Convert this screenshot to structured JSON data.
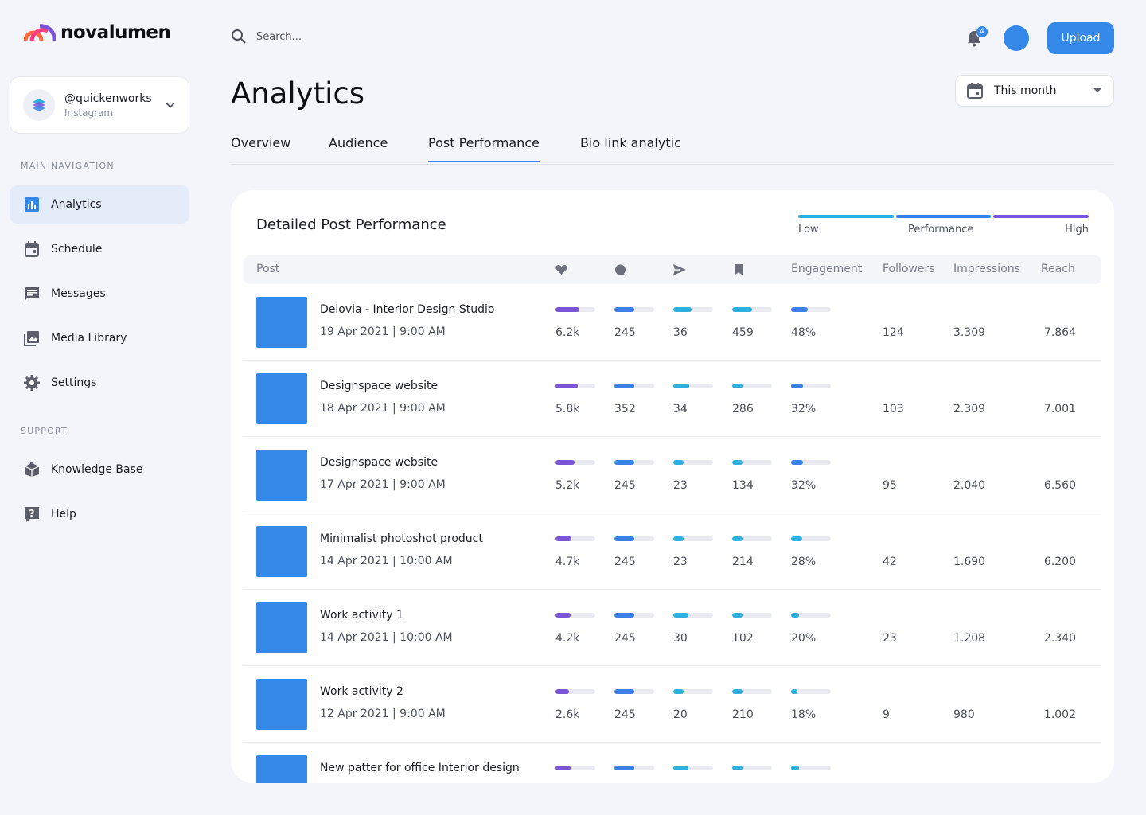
{
  "brand": {
    "name": "novalumen"
  },
  "account": {
    "handle": "@quickenworks",
    "platform": "Instagram"
  },
  "nav": {
    "main_heading": "MAIN NAVIGATION",
    "items": [
      {
        "label": "Analytics",
        "icon": "bar-chart-icon",
        "active": true
      },
      {
        "label": "Schedule",
        "icon": "calendar-icon",
        "active": false
      },
      {
        "label": "Messages",
        "icon": "message-icon",
        "active": false
      },
      {
        "label": "Media Library",
        "icon": "image-icon",
        "active": false
      },
      {
        "label": "Settings",
        "icon": "gear-icon",
        "active": false
      }
    ],
    "support_heading": "SUPPORT",
    "support_items": [
      {
        "label": "Knowledge Base",
        "icon": "box-icon"
      },
      {
        "label": "Help",
        "icon": "question-icon"
      }
    ]
  },
  "header": {
    "search_placeholder": "Search...",
    "notification_count": "4",
    "upload_label": "Upload"
  },
  "page": {
    "title": "Analytics",
    "period": "This month",
    "tabs": [
      {
        "label": "Overview",
        "active": false
      },
      {
        "label": "Audience",
        "active": false
      },
      {
        "label": "Post Performance",
        "active": true
      },
      {
        "label": "Bio link analytic",
        "active": false
      }
    ]
  },
  "card": {
    "title": "Detailed Post Performance",
    "legend": {
      "low": "Low",
      "middle": "Performance",
      "high": "High"
    },
    "colors": {
      "low": "#2bb0e0",
      "mid": "#3a80e6",
      "high": "#7b55d8"
    },
    "columns": {
      "post": "Post",
      "likes_icon": "heart-icon",
      "comments_icon": "comment-icon",
      "shares_icon": "send-icon",
      "saves_icon": "bookmark-icon",
      "engagement": "Engagement",
      "followers": "Followers",
      "impressions": "Impressions",
      "reach": "Reach"
    },
    "rows": [
      {
        "title": "Delovia - Interior Design Studio",
        "date": "19 Apr 2021 | 9:00 AM",
        "likes": "6.2k",
        "comments": "245",
        "shares": "36",
        "saves": "459",
        "engagement": "48%",
        "followers": "124",
        "impressions": "3.309",
        "reach": "7.864",
        "levels": {
          "likes": 0.6,
          "comments": 0.5,
          "shares": 0.45,
          "saves": 0.5,
          "engagement": 0.42
        }
      },
      {
        "title": "Designspace website",
        "date": "18 Apr 2021 | 9:00 AM",
        "likes": "5.8k",
        "comments": "352",
        "shares": "34",
        "saves": "286",
        "engagement": "32%",
        "followers": "103",
        "impressions": "2.309",
        "reach": "7.001",
        "levels": {
          "likes": 0.56,
          "comments": 0.5,
          "shares": 0.4,
          "saves": 0.25,
          "engagement": 0.3
        }
      },
      {
        "title": "Designspace website",
        "date": "17 Apr 2021 | 9:00 AM",
        "likes": "5.2k",
        "comments": "245",
        "shares": "23",
        "saves": "134",
        "engagement": "32%",
        "followers": "95",
        "impressions": "2.040",
        "reach": "6.560",
        "levels": {
          "likes": 0.48,
          "comments": 0.5,
          "shares": 0.25,
          "saves": 0.25,
          "engagement": 0.3
        }
      },
      {
        "title": "Minimalist photoshot product",
        "date": "14 Apr 2021 | 10:00 AM",
        "likes": "4.7k",
        "comments": "245",
        "shares": "23",
        "saves": "214",
        "engagement": "28%",
        "followers": "42",
        "impressions": "1.690",
        "reach": "6.200",
        "levels": {
          "likes": 0.4,
          "comments": 0.5,
          "shares": 0.25,
          "saves": 0.25,
          "engagement": 0.28
        }
      },
      {
        "title": "Work activity 1",
        "date": "14 Apr 2021 | 10:00 AM",
        "likes": "4.2k",
        "comments": "245",
        "shares": "30",
        "saves": "102",
        "engagement": "20%",
        "followers": "23",
        "impressions": "1.208",
        "reach": "2.340",
        "levels": {
          "likes": 0.38,
          "comments": 0.5,
          "shares": 0.38,
          "saves": 0.25,
          "engagement": 0.2
        }
      },
      {
        "title": "Work activity 2",
        "date": "12 Apr 2021 | 9:00 AM",
        "likes": "2.6k",
        "comments": "245",
        "shares": "20",
        "saves": "210",
        "engagement": "18%",
        "followers": "9",
        "impressions": "980",
        "reach": "1.002",
        "levels": {
          "likes": 0.34,
          "comments": 0.5,
          "shares": 0.25,
          "saves": 0.25,
          "engagement": 0.16
        }
      },
      {
        "title": "New patter for office Interior design",
        "date": "",
        "likes": "",
        "comments": "",
        "shares": "",
        "saves": "",
        "engagement": "",
        "followers": "",
        "impressions": "",
        "reach": "",
        "levels": {
          "likes": 0.38,
          "comments": 0.5,
          "shares": 0.38,
          "saves": 0.25,
          "engagement": 0.2
        }
      }
    ]
  }
}
